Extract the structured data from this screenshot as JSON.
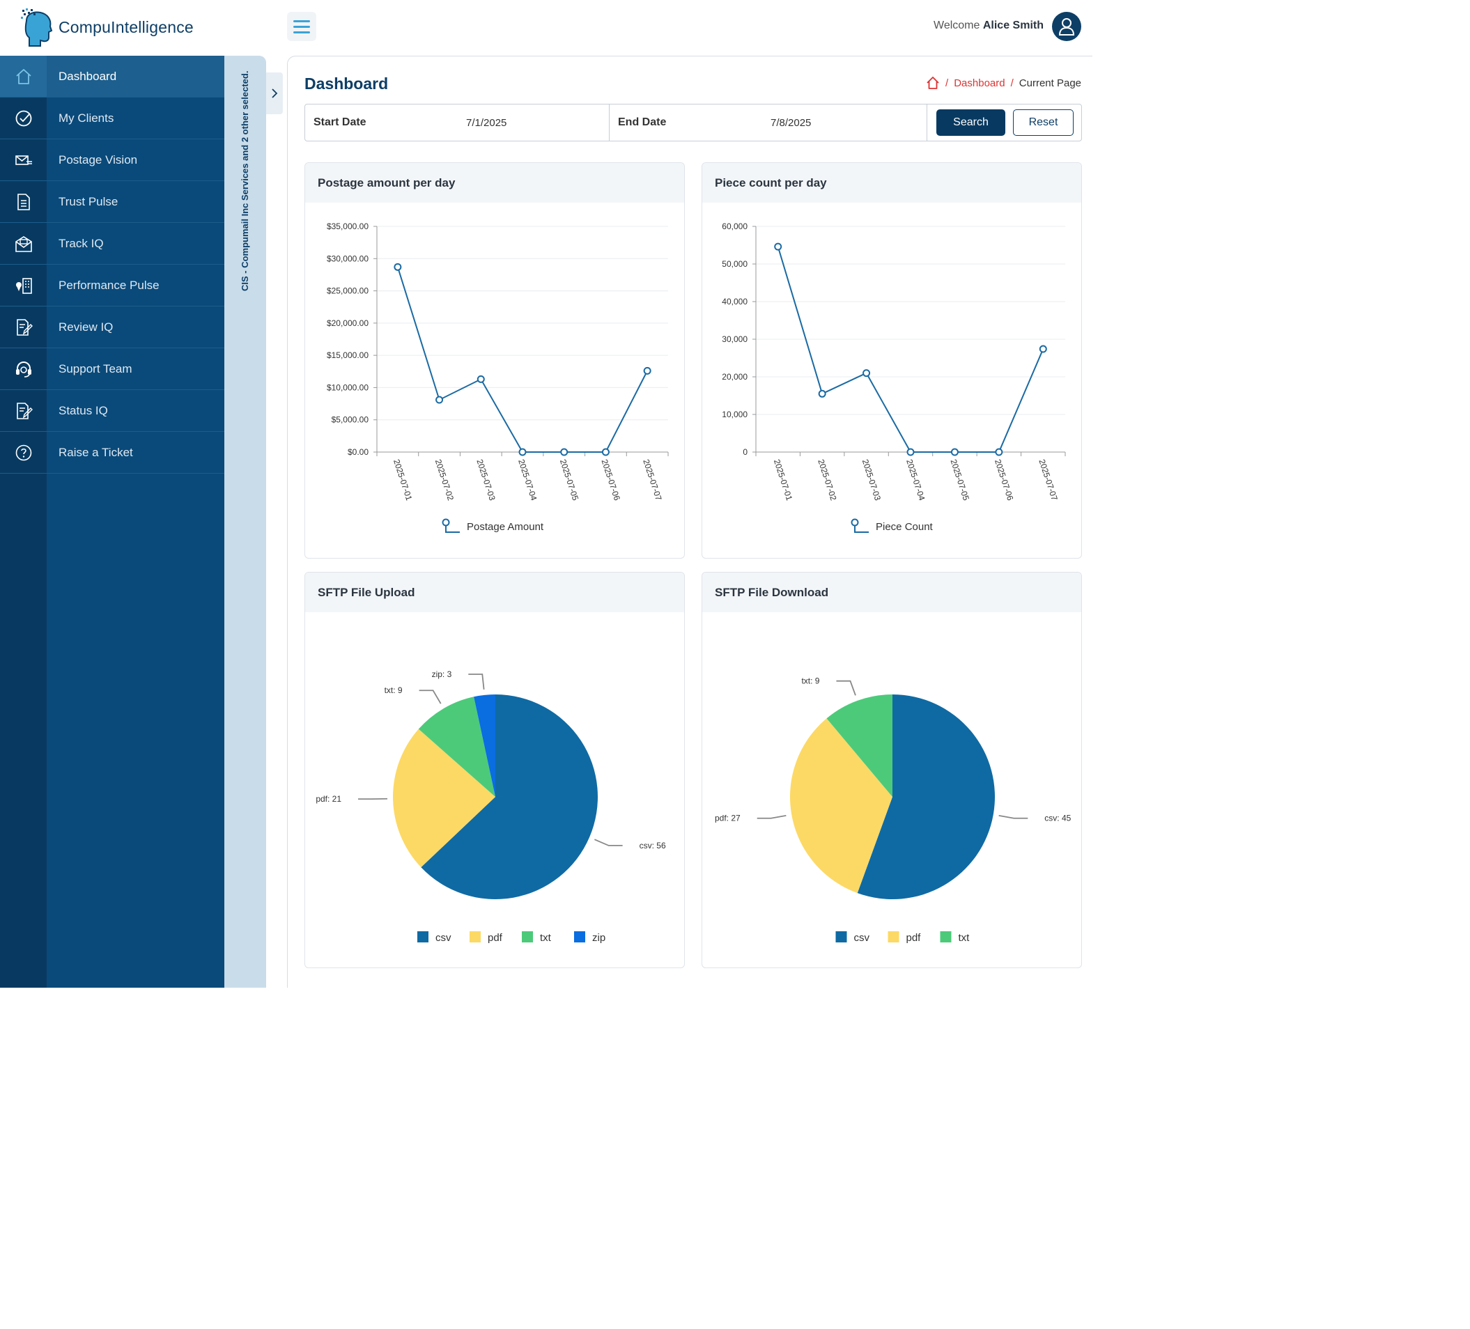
{
  "header": {
    "logo_text": "CompuIntelligence",
    "welcome_prefix": "Welcome",
    "user_name": "Alice Smith"
  },
  "sidebar": {
    "items": [
      {
        "label": "Dashboard",
        "icon": "home-icon"
      },
      {
        "label": "My Clients",
        "icon": "check-circle-icon"
      },
      {
        "label": "Postage Vision",
        "icon": "mail-fast-icon"
      },
      {
        "label": "Trust Pulse",
        "icon": "document-icon"
      },
      {
        "label": "Track IQ",
        "icon": "envelope-open-icon"
      },
      {
        "label": "Performance Pulse",
        "icon": "building-location-icon"
      },
      {
        "label": "Review IQ",
        "icon": "edit-document-icon"
      },
      {
        "label": "Support Team",
        "icon": "headset-icon"
      },
      {
        "label": "Status IQ",
        "icon": "edit-document-icon"
      },
      {
        "label": "Raise a Ticket",
        "icon": "help-circle-icon"
      }
    ],
    "client_selection": "CIS - Compumail Inc Services and 2 other selected."
  },
  "page": {
    "title": "Dashboard",
    "breadcrumb": {
      "link": "Dashboard",
      "current": "Current Page"
    }
  },
  "filters": {
    "start_label": "Start Date",
    "start_value": "7/1/2025",
    "end_label": "End Date",
    "end_value": "7/8/2025",
    "search_label": "Search",
    "reset_label": "Reset"
  },
  "colors": {
    "primary": "#083a61",
    "line": "#1a6aa3",
    "csv": "#0f6aa3",
    "pdf": "#fcd965",
    "txt": "#4cca7a",
    "zip": "#0a6de0"
  },
  "chart_data": [
    {
      "type": "line",
      "title": "Postage amount per day",
      "x": [
        "2025-07-01",
        "2025-07-02",
        "2025-07-03",
        "2025-07-04",
        "2025-07-05",
        "2025-07-06",
        "2025-07-07"
      ],
      "series": [
        {
          "name": "Postage Amount",
          "values": [
            28700,
            8100,
            11300,
            0,
            0,
            0,
            12600
          ]
        }
      ],
      "ylim": [
        0,
        35000
      ],
      "yticks": [
        "$35,000.00",
        "$30,000.00",
        "$25,000.00",
        "$20,000.00",
        "$15,000.00",
        "$10,000.00",
        "$5,000.00",
        "$0.00"
      ],
      "ytick_values": [
        35000,
        30000,
        25000,
        20000,
        15000,
        10000,
        5000,
        0
      ],
      "grid": true,
      "legend": "bottom"
    },
    {
      "type": "line",
      "title": "Piece count per day",
      "x": [
        "2025-07-01",
        "2025-07-02",
        "2025-07-03",
        "2025-07-04",
        "2025-07-05",
        "2025-07-06",
        "2025-07-07"
      ],
      "series": [
        {
          "name": "Piece Count",
          "values": [
            54600,
            15500,
            21000,
            0,
            0,
            0,
            27400
          ]
        }
      ],
      "ylim": [
        0,
        60000
      ],
      "yticks": [
        "60,000",
        "50,000",
        "40,000",
        "30,000",
        "20,000",
        "10,000",
        "0"
      ],
      "ytick_values": [
        60000,
        50000,
        40000,
        30000,
        20000,
        10000,
        0
      ],
      "grid": true,
      "legend": "bottom"
    },
    {
      "type": "pie",
      "title": "SFTP File Upload",
      "categories": [
        "csv",
        "pdf",
        "txt",
        "zip"
      ],
      "values": [
        56,
        21,
        9,
        3
      ],
      "legend": "bottom"
    },
    {
      "type": "pie",
      "title": "SFTP File Download",
      "categories": [
        "csv",
        "pdf",
        "txt"
      ],
      "values": [
        45,
        27,
        9
      ],
      "legend": "bottom"
    }
  ]
}
